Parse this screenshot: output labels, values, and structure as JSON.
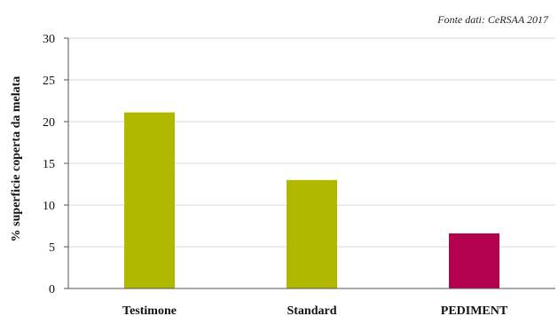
{
  "chart_data": {
    "type": "bar",
    "title": "",
    "source_note": "Fonte dati: CeRSAA 2017",
    "xlabel": "",
    "ylabel": "% superficie coperta da melata",
    "categories": [
      "Testimone",
      "Standard",
      "PEDIMENT"
    ],
    "values": [
      21.1,
      13.0,
      6.6
    ],
    "ylim": [
      0,
      30
    ],
    "yticks": [
      0,
      5,
      10,
      15,
      20,
      25,
      30
    ],
    "grid": true,
    "legend": "none",
    "colors": [
      "#b1b800",
      "#b1b800",
      "#b3004f"
    ]
  },
  "colors": {
    "grid": "#d9d9d9",
    "axis": "#555555"
  }
}
